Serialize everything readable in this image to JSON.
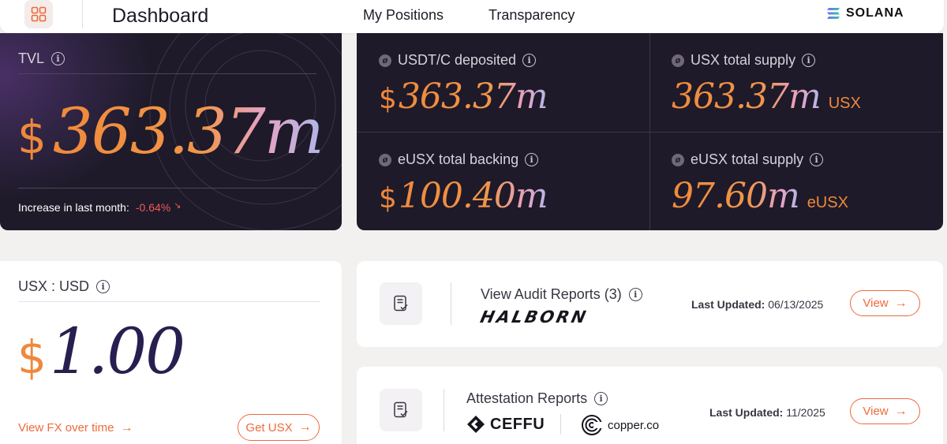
{
  "header": {
    "title": "Dashboard",
    "nav": [
      {
        "label": "My Positions"
      },
      {
        "label": "Transparency"
      }
    ],
    "network": "SOLANA",
    "menu_icon": "grid-icon"
  },
  "tvl": {
    "label": "TVL",
    "currency": "$",
    "value": "363.37m",
    "change_label": "Increase in last month:",
    "change_value": "-0.64%",
    "change_arrow": "↘"
  },
  "stats": [
    {
      "label": "USDT/C deposited",
      "currency": "$",
      "value": "363.37m",
      "unit": ""
    },
    {
      "label": "USX total supply",
      "currency": "",
      "value": "363.37m",
      "unit": "USX"
    },
    {
      "label": "eUSX total backing",
      "currency": "$",
      "value": "100.40m",
      "unit": ""
    },
    {
      "label": "eUSX total supply",
      "currency": "",
      "value": "97.60m",
      "unit": "eUSX"
    }
  ],
  "usx_rate": {
    "label": "USX : USD",
    "currency": "$",
    "value": "1.00",
    "fx_link": "View FX over time",
    "get_button": "Get USX"
  },
  "audit": {
    "title": "View Audit Reports (3)",
    "auditor": "HALBORN",
    "updated_label": "Last Updated:",
    "updated_value": "06/13/2025",
    "button": "View"
  },
  "attestation": {
    "title": "Attestation Reports",
    "provider_1": "CEFFU",
    "provider_2": "copper.co",
    "updated_label": "Last Updated:",
    "updated_value": "11/2025",
    "button": "View"
  },
  "colors": {
    "accent": "#ef6a3a",
    "dark_card": "#1e1a29",
    "negative": "#f05a5a",
    "usx_value": "#262050"
  }
}
